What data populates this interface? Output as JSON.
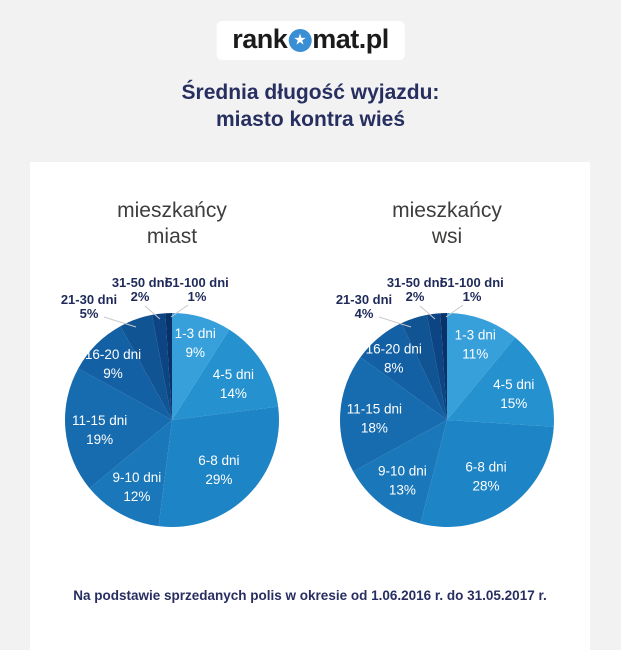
{
  "logo": {
    "text_pre": "rank",
    "icon": "star-icon",
    "text_post": "mat.pl"
  },
  "title": {
    "line1": "Średnia długość wyjazdu:",
    "line2": "miasto kontra wieś"
  },
  "footer": "Na podstawie sprzedanych polis w okresie od 1.06.2016 r. do 31.05.2017 r.",
  "colors": {
    "page_background": "#f2f2f2",
    "card_background": "#ffffff",
    "title_navy": "#272e60",
    "outside_label_navy": "#1f2a5a",
    "inside_label_white": "#ffffff",
    "chart_title_gray": "#3d3d3c",
    "leader_line_gray": "#c9c9c9",
    "logo_star_blue": "#3a8fd4"
  },
  "chart_data": [
    {
      "type": "pie",
      "title": "mieszkańcy miast",
      "title_lines": [
        "mieszkańcy",
        "miast"
      ],
      "categories": [
        "1-3 dni",
        "4-5 dni",
        "6-8 dni",
        "9-10 dni",
        "11-15 dni",
        "16-20 dni",
        "21-30 dni",
        "31-50 dni",
        "51-100 dni"
      ],
      "values": [
        9,
        14,
        29,
        12,
        19,
        9,
        5,
        2,
        1
      ],
      "colors": [
        "#37a0db",
        "#2691cf",
        "#1d84c6",
        "#1a78ba",
        "#176caf",
        "#1360a4",
        "#105494",
        "#0c4484",
        "#093269"
      ],
      "outside_label_categories": [
        "21-30 dni",
        "31-50 dni",
        "51-100 dni"
      ],
      "start_angle_deg": 0,
      "direction": "clockwise"
    },
    {
      "type": "pie",
      "title": "mieszkańcy wsi",
      "title_lines": [
        "mieszkańcy",
        "wsi"
      ],
      "categories": [
        "1-3 dni",
        "4-5 dni",
        "6-8 dni",
        "9-10 dni",
        "11-15 dni",
        "16-20 dni",
        "21-30 dni",
        "31-50 dni",
        "51-100 dni"
      ],
      "values": [
        11,
        15,
        28,
        13,
        18,
        8,
        4,
        2,
        1
      ],
      "colors": [
        "#37a0db",
        "#2691cf",
        "#1d84c6",
        "#1a78ba",
        "#176caf",
        "#1360a4",
        "#105494",
        "#0c4484",
        "#093269"
      ],
      "outside_label_categories": [
        "21-30 dni",
        "31-50 dni",
        "51-100 dni"
      ],
      "start_angle_deg": 0,
      "direction": "clockwise"
    }
  ]
}
